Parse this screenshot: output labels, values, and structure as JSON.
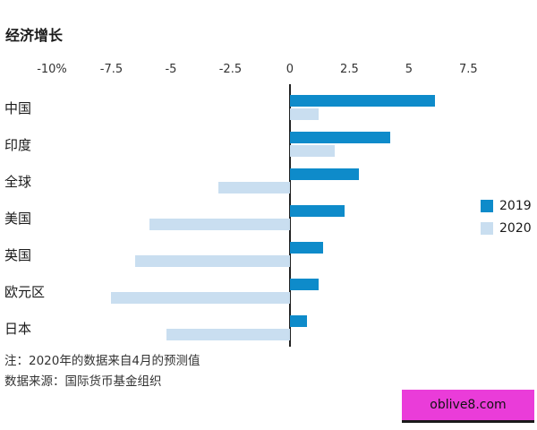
{
  "chart_data": {
    "type": "bar",
    "orientation": "horizontal",
    "title": "经济增长",
    "categories": [
      "中国",
      "印度",
      "全球",
      "美国",
      "英国",
      "欧元区",
      "日本"
    ],
    "series": [
      {
        "name": "2019",
        "color": "#0e8bca",
        "values": [
          6.1,
          4.2,
          2.9,
          2.3,
          1.4,
          1.2,
          0.7
        ]
      },
      {
        "name": "2020",
        "color": "#c9def0",
        "values": [
          1.2,
          1.9,
          -3.0,
          -5.9,
          -6.5,
          -7.5,
          -5.2
        ]
      }
    ],
    "x_ticks": [
      {
        "value": -10,
        "label": "-10%"
      },
      {
        "value": -7.5,
        "label": "-7.5"
      },
      {
        "value": -5,
        "label": "-5"
      },
      {
        "value": -2.5,
        "label": "-2.5"
      },
      {
        "value": 0,
        "label": "0"
      },
      {
        "value": 2.5,
        "label": "2.5"
      },
      {
        "value": 5,
        "label": "5"
      },
      {
        "value": 7.5,
        "label": "7.5"
      }
    ],
    "xlim": [
      -10,
      7.75
    ],
    "xlabel": "",
    "ylabel": "",
    "grid": false,
    "legend_position": "right"
  },
  "notes": {
    "line1": "注：2020年的数据来自4月的预测值",
    "line2": "数据来源：国际货币基金组织"
  },
  "watermark": {
    "text": "oblive8.com",
    "background": "#ea3cd9"
  },
  "colors": {
    "axis_line": "#222222",
    "text": "#1a1a1a"
  }
}
